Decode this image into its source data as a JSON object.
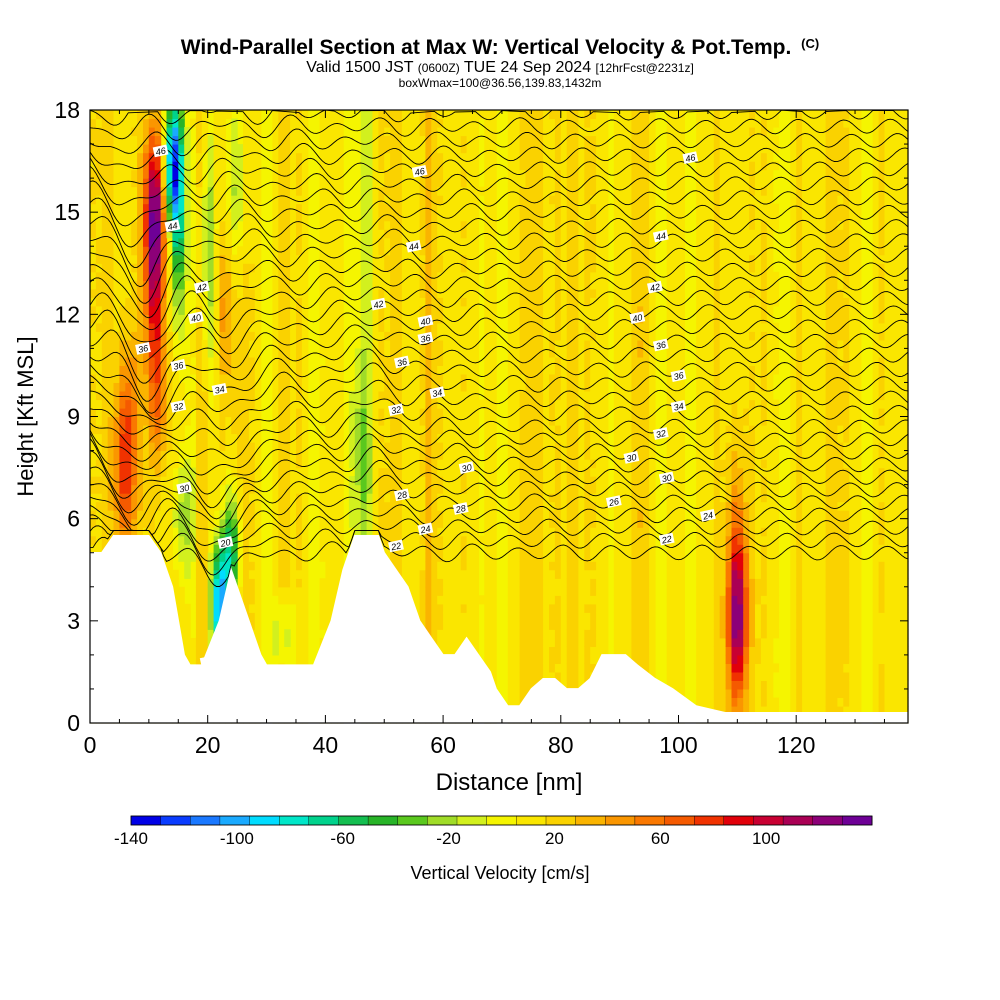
{
  "header": {
    "title_main": "Wind-Parallel Section at Max W: Vertical Velocity & Pot.Temp.",
    "title_mark": "(C)",
    "valid_pre": "Valid 1500 JST",
    "valid_utc": "(0600Z)",
    "valid_post": "TUE 24 Sep 2024",
    "forecast": "[12hrFcst@2231z]",
    "box_info": "boxWmax=100@36.56,139.83,1432m"
  },
  "chart_data": {
    "type": "heatmap",
    "xlabel": "Distance [nm]",
    "ylabel": "Height [Kft MSL]",
    "xlim": [
      0,
      139
    ],
    "ylim": [
      0,
      18
    ],
    "x_ticks": [
      0,
      20,
      40,
      60,
      80,
      100,
      120
    ],
    "y_ticks": [
      0,
      3,
      6,
      9,
      12,
      15,
      18
    ],
    "colorbar": {
      "label": "Vertical Velocity [cm/s]",
      "range": [
        -140,
        140
      ],
      "tick_values": [
        -140,
        -100,
        -60,
        -20,
        20,
        60,
        100
      ],
      "colors": [
        "#0000e6",
        "#0a3cff",
        "#1a78ff",
        "#1aaaff",
        "#00dcff",
        "#00e6c8",
        "#00d28c",
        "#14be50",
        "#28b428",
        "#5ac81e",
        "#a0dc28",
        "#d2f01e",
        "#f5f500",
        "#fae600",
        "#fad200",
        "#fab400",
        "#fa9600",
        "#fa7800",
        "#f55a00",
        "#f03200",
        "#e1000a",
        "#c80032",
        "#aa0055",
        "#8c0078",
        "#6e0096"
      ]
    },
    "theta_contour_labels": [
      "20",
      "22",
      "24",
      "26",
      "28",
      "30",
      "32",
      "34",
      "36",
      "40",
      "42",
      "44",
      "46"
    ],
    "terrain_profile": [
      [
        0,
        5
      ],
      [
        2,
        5
      ],
      [
        4,
        5.5
      ],
      [
        10,
        5.5
      ],
      [
        12,
        5
      ],
      [
        14,
        4
      ],
      [
        16,
        2
      ],
      [
        17,
        1.7
      ],
      [
        19,
        1.7
      ],
      [
        22,
        3
      ],
      [
        24,
        4.5
      ],
      [
        27,
        3
      ],
      [
        29,
        2
      ],
      [
        30,
        1.7
      ],
      [
        38,
        1.7
      ],
      [
        41,
        3
      ],
      [
        43,
        4.5
      ],
      [
        45,
        5.5
      ],
      [
        49,
        5.5
      ],
      [
        50,
        5
      ],
      [
        52,
        4.5
      ],
      [
        54,
        4
      ],
      [
        56,
        3
      ],
      [
        58,
        2.5
      ],
      [
        60,
        2
      ],
      [
        62,
        2
      ],
      [
        64,
        2.5
      ],
      [
        66,
        2
      ],
      [
        68,
        1.5
      ],
      [
        69,
        1
      ],
      [
        71,
        0.5
      ],
      [
        73,
        0.5
      ],
      [
        75,
        1
      ],
      [
        77,
        1.3
      ],
      [
        79,
        1.3
      ],
      [
        81,
        1
      ],
      [
        83,
        1
      ],
      [
        85,
        1.3
      ],
      [
        87,
        2
      ],
      [
        91,
        2
      ],
      [
        93,
        1.7
      ],
      [
        96,
        1.3
      ],
      [
        99,
        1
      ],
      [
        103,
        0.5
      ],
      [
        108,
        0.3
      ],
      [
        139,
        0.3
      ]
    ],
    "updraft_cores": [
      {
        "x": 6,
        "y": 7.5,
        "w": 85
      },
      {
        "x": 11,
        "y": 15,
        "w": 110
      },
      {
        "x": 110,
        "y": 3,
        "w": 100
      }
    ],
    "downdraft_cores": [
      {
        "x": 14,
        "y": 16.5,
        "w": -90
      },
      {
        "x": 22,
        "y": 3.5,
        "w": -110
      },
      {
        "x": 24,
        "y": 5,
        "w": -60
      }
    ]
  }
}
